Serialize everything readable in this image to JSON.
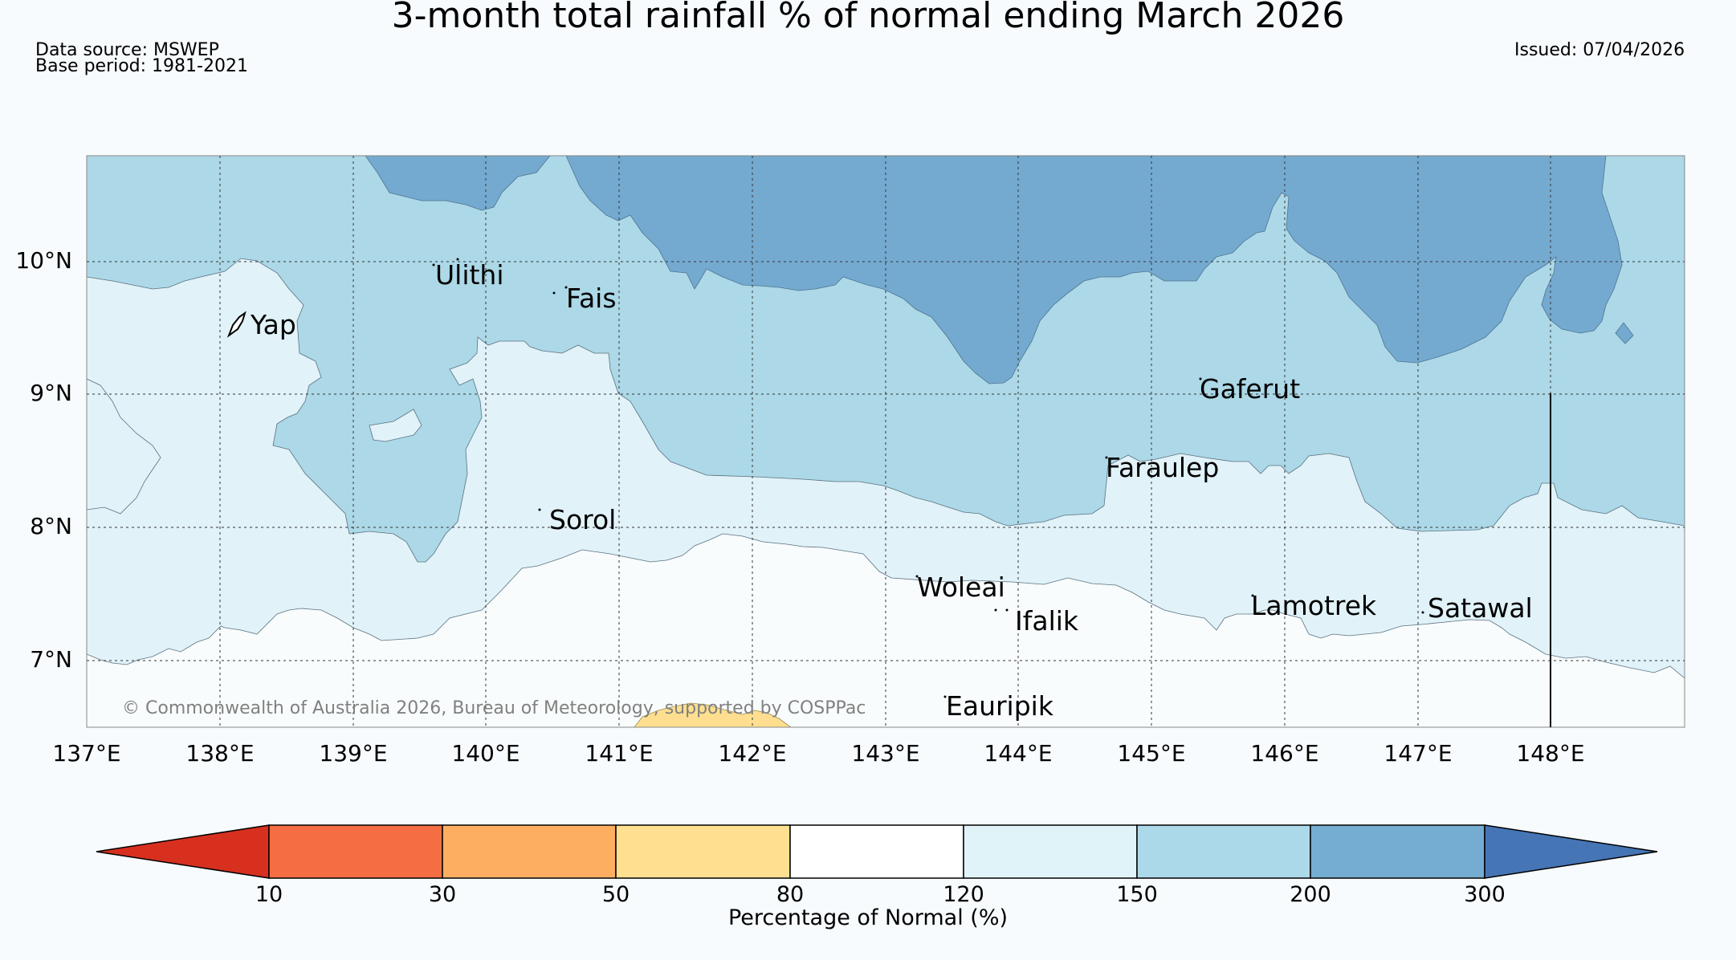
{
  "title": "3-month total rainfall % of normal ending March 2026",
  "header": {
    "data_source": "Data source: MSWEP",
    "base_period": "Base period: 1981-2021",
    "issued": "Issued: 07/04/2026"
  },
  "map": {
    "lon_labels": [
      "137°E",
      "138°E",
      "139°E",
      "140°E",
      "141°E",
      "142°E",
      "143°E",
      "144°E",
      "145°E",
      "146°E",
      "147°E",
      "148°E"
    ],
    "lat_labels": [
      "10°N",
      "9°N",
      "8°N",
      "7°N"
    ],
    "places": [
      {
        "name": "Ulithi"
      },
      {
        "name": "Fais"
      },
      {
        "name": "Yap"
      },
      {
        "name": "Gaferut"
      },
      {
        "name": "Faraulep"
      },
      {
        "name": "Sorol"
      },
      {
        "name": "Woleai"
      },
      {
        "name": "Ifalik"
      },
      {
        "name": "Lamotrek"
      },
      {
        "name": "Satawal"
      },
      {
        "name": "Eauripik"
      }
    ],
    "copyright": "© Commonwealth of Australia 2026, Bureau of Meteorology, supported by COSPPac",
    "colors": {
      "c120_150": "#e1f2f8",
      "c150_200": "#acd8e7",
      "c200_300": "#74aad0",
      "c80_120": "#f9fcfd",
      "c50_80": "#ffdf8f"
    }
  },
  "colorbar": {
    "label": "Percentage of Normal (%)",
    "ticks": [
      "10",
      "30",
      "50",
      "80",
      "120",
      "150",
      "200",
      "300"
    ],
    "colors": [
      "#d7301f",
      "#f46d43",
      "#fdae61",
      "#ffe090",
      "#ffffff",
      "#e0f3f8",
      "#abd9e9",
      "#74add1",
      "#4575b4"
    ]
  }
}
